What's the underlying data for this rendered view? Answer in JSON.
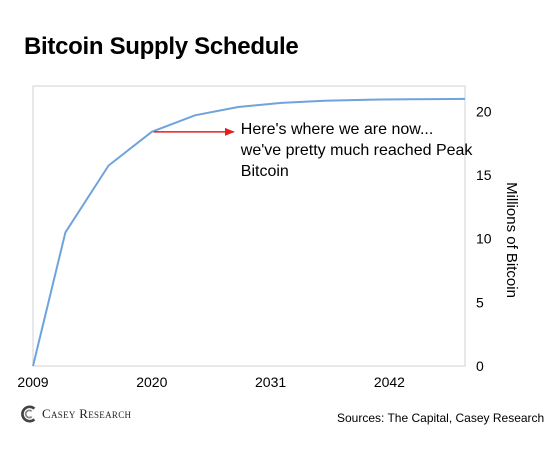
{
  "title": "Bitcoin Supply Schedule",
  "chart_data": {
    "type": "line",
    "title": "Bitcoin Supply Schedule",
    "xlabel": "",
    "ylabel": "Millions of Bitcoin",
    "x": [
      2009,
      2012,
      2016,
      2020,
      2024,
      2028,
      2032,
      2036,
      2040,
      2044,
      2048,
      2049
    ],
    "series": [
      {
        "values": [
          0,
          10.5,
          15.75,
          18.4,
          19.7,
          20.35,
          20.67,
          20.84,
          20.92,
          20.96,
          20.98,
          20.99
        ]
      }
    ],
    "xticks": [
      2009,
      2020,
      2031,
      2042
    ],
    "yticks": [
      0,
      5,
      10,
      15,
      20
    ],
    "xlim": [
      2009,
      2049
    ],
    "ylim": [
      0,
      22
    ],
    "grid": false,
    "line_color": "#6fa3dc",
    "annotation": {
      "x": 2020,
      "y": 18.4,
      "lines": [
        "Here's where we are now...",
        "we've pretty much reached Peak",
        "Bitcoin"
      ],
      "arrow_color": "#e02020"
    }
  },
  "source": "Sources: The Capital, Casey Research",
  "logo": {
    "text": "Casey Research",
    "icon": "casey-research-logo-icon"
  }
}
